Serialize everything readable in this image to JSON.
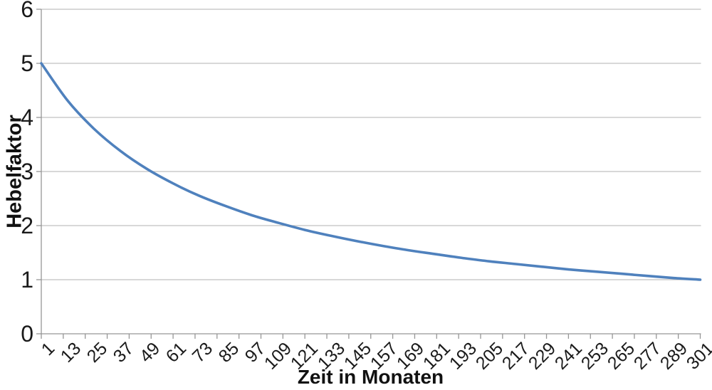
{
  "chart_data": {
    "type": "line",
    "title": "",
    "xlabel": "Zeit in Monaten",
    "ylabel": "Hebelfaktor",
    "x": [
      1,
      13,
      25,
      37,
      49,
      61,
      73,
      85,
      97,
      109,
      121,
      133,
      145,
      157,
      169,
      181,
      193,
      205,
      217,
      229,
      241,
      253,
      265,
      277,
      289,
      301
    ],
    "series": [
      {
        "name": "Hebelfaktor",
        "color": "#4F81BD",
        "values": [
          5.0,
          4.31,
          3.79,
          3.38,
          3.05,
          2.78,
          2.55,
          2.36,
          2.19,
          2.05,
          1.92,
          1.81,
          1.71,
          1.62,
          1.54,
          1.47,
          1.4,
          1.34,
          1.29,
          1.24,
          1.19,
          1.15,
          1.11,
          1.07,
          1.03,
          1.0
        ]
      }
    ],
    "xlim": [
      1,
      301
    ],
    "ylim": [
      0,
      6
    ],
    "y_ticks": [
      0,
      1,
      2,
      3,
      4,
      5,
      6
    ],
    "x_tick_mark_interval": 10,
    "x_label_interval": 12,
    "grid": true,
    "legend": "none"
  },
  "colors": {
    "line": "#4F81BD",
    "gridline": "#c0c0c0",
    "axis": "#969696",
    "text": "#1a1a1a"
  }
}
